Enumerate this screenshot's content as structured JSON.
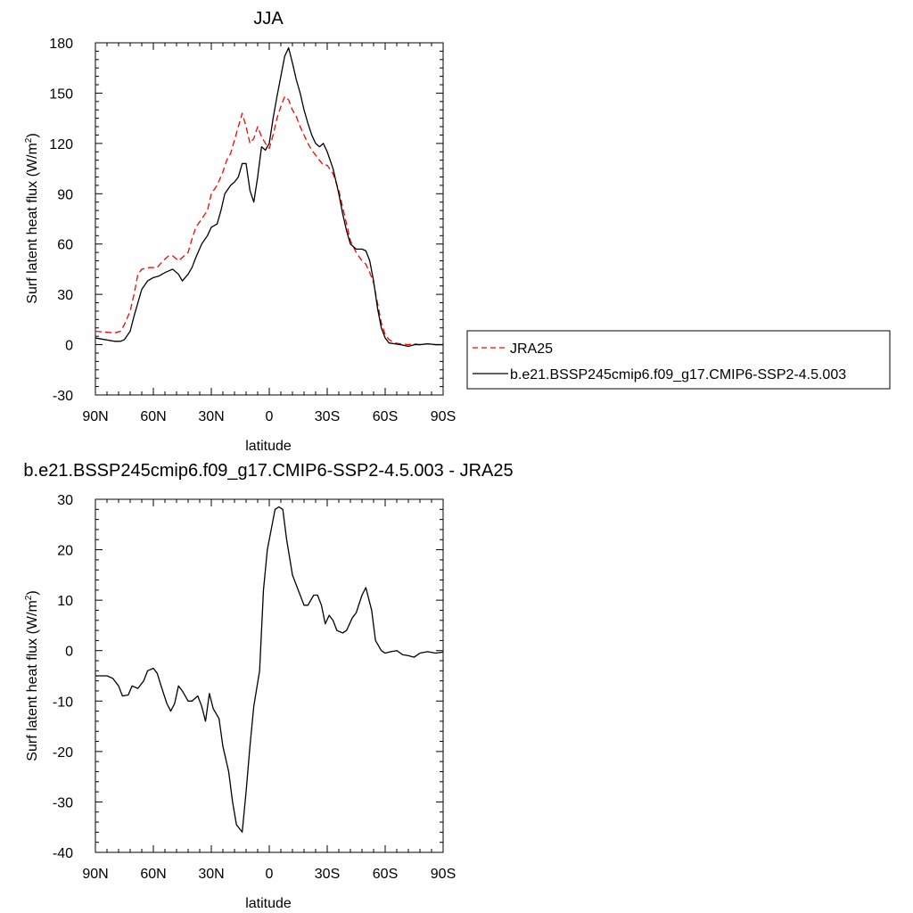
{
  "chart_data": [
    {
      "type": "line",
      "title": "JJA",
      "xlabel": "latitude",
      "ylabel": "Surf latent heat flux (W/m",
      "ylabel_sup": "2",
      "ylabel_close": ")",
      "xlim": [
        90,
        -90
      ],
      "ylim": [
        -30,
        180
      ],
      "xticks": [
        {
          "value": 90,
          "label": "90N"
        },
        {
          "value": 60,
          "label": "60N"
        },
        {
          "value": 30,
          "label": "30N"
        },
        {
          "value": 0,
          "label": "0"
        },
        {
          "value": -30,
          "label": "30S"
        },
        {
          "value": -60,
          "label": "60S"
        },
        {
          "value": -90,
          "label": "90S"
        }
      ],
      "yticks": [
        -30,
        0,
        30,
        60,
        90,
        120,
        150,
        180
      ],
      "legend_position": "right",
      "series": [
        {
          "name": "JRA25",
          "color": "#ff0000",
          "dash": true,
          "points": [
            [
              90,
              8
            ],
            [
              85,
              7.5
            ],
            [
              80,
              7
            ],
            [
              77,
              8
            ],
            [
              75,
              12
            ],
            [
              72,
              20
            ],
            [
              70,
              30
            ],
            [
              68,
              42
            ],
            [
              66,
              45
            ],
            [
              62,
              46
            ],
            [
              58,
              46
            ],
            [
              55,
              50
            ],
            [
              52,
              53
            ],
            [
              50,
              53
            ],
            [
              47,
              50
            ],
            [
              45,
              52
            ],
            [
              42,
              55
            ],
            [
              40,
              63
            ],
            [
              38,
              70
            ],
            [
              35,
              75
            ],
            [
              32,
              80
            ],
            [
              30,
              90
            ],
            [
              27,
              95
            ],
            [
              24,
              103
            ],
            [
              22,
              110
            ],
            [
              20,
              114
            ],
            [
              18,
              122
            ],
            [
              16,
              130
            ],
            [
              14,
              138
            ],
            [
              12,
              130
            ],
            [
              10,
              120
            ],
            [
              8,
              123
            ],
            [
              6,
              130
            ],
            [
              4,
              124
            ],
            [
              2,
              120
            ],
            [
              0,
              117
            ],
            [
              -2,
              125
            ],
            [
              -4,
              135
            ],
            [
              -6,
              142
            ],
            [
              -8,
              148
            ],
            [
              -10,
              146
            ],
            [
              -12,
              140
            ],
            [
              -14,
              136
            ],
            [
              -16,
              130
            ],
            [
              -18,
              125
            ],
            [
              -20,
              120
            ],
            [
              -22,
              116
            ],
            [
              -24,
              113
            ],
            [
              -26,
              110
            ],
            [
              -28,
              107
            ],
            [
              -30,
              107
            ],
            [
              -33,
              102
            ],
            [
              -36,
              92
            ],
            [
              -38,
              82
            ],
            [
              -40,
              72
            ],
            [
              -42,
              62
            ],
            [
              -45,
              55
            ],
            [
              -48,
              50
            ],
            [
              -50,
              48
            ],
            [
              -52,
              43
            ],
            [
              -54,
              37
            ],
            [
              -56,
              25
            ],
            [
              -58,
              13
            ],
            [
              -60,
              6
            ],
            [
              -62,
              3
            ],
            [
              -65,
              1
            ],
            [
              -68,
              0.5
            ],
            [
              -72,
              0
            ],
            [
              -75,
              0.5
            ],
            [
              -78,
              0
            ],
            [
              -82,
              0.5
            ],
            [
              -86,
              0
            ],
            [
              -90,
              0
            ]
          ]
        },
        {
          "name": "b.e21.BSSP245cmip6.f09_g17.CMIP6-SSP2-4.5.003",
          "color": "#000000",
          "dash": false,
          "points": [
            [
              90,
              4
            ],
            [
              85,
              3
            ],
            [
              80,
              2
            ],
            [
              77,
              2
            ],
            [
              75,
              3
            ],
            [
              72,
              8
            ],
            [
              70,
              17
            ],
            [
              68,
              25
            ],
            [
              66,
              33
            ],
            [
              63,
              38
            ],
            [
              60,
              40
            ],
            [
              57,
              41
            ],
            [
              54,
              43
            ],
            [
              50,
              45
            ],
            [
              47,
              42
            ],
            [
              45,
              38
            ],
            [
              42,
              42
            ],
            [
              40,
              46
            ],
            [
              38,
              52
            ],
            [
              35,
              60
            ],
            [
              32,
              65
            ],
            [
              30,
              70
            ],
            [
              27,
              72
            ],
            [
              25,
              80
            ],
            [
              23,
              90
            ],
            [
              20,
              95
            ],
            [
              18,
              97
            ],
            [
              16,
              100
            ],
            [
              14,
              108
            ],
            [
              12,
              108
            ],
            [
              10,
              92
            ],
            [
              8,
              85
            ],
            [
              6,
              100
            ],
            [
              4,
              118
            ],
            [
              2,
              116
            ],
            [
              0,
              120
            ],
            [
              -2,
              135
            ],
            [
              -4,
              148
            ],
            [
              -6,
              160
            ],
            [
              -8,
              172
            ],
            [
              -10,
              177
            ],
            [
              -12,
              168
            ],
            [
              -14,
              158
            ],
            [
              -16,
              150
            ],
            [
              -18,
              140
            ],
            [
              -20,
              132
            ],
            [
              -22,
              125
            ],
            [
              -24,
              120
            ],
            [
              -26,
              118
            ],
            [
              -28,
              120
            ],
            [
              -30,
              115
            ],
            [
              -33,
              105
            ],
            [
              -36,
              90
            ],
            [
              -38,
              78
            ],
            [
              -40,
              68
            ],
            [
              -42,
              60
            ],
            [
              -45,
              57
            ],
            [
              -48,
              57
            ],
            [
              -50,
              56
            ],
            [
              -52,
              50
            ],
            [
              -54,
              38
            ],
            [
              -56,
              22
            ],
            [
              -58,
              10
            ],
            [
              -60,
              4
            ],
            [
              -62,
              1
            ],
            [
              -65,
              0.5
            ],
            [
              -68,
              0
            ],
            [
              -72,
              -1
            ],
            [
              -75,
              0
            ],
            [
              -78,
              0
            ],
            [
              -82,
              0.5
            ],
            [
              -86,
              0
            ],
            [
              -90,
              0
            ]
          ]
        }
      ]
    },
    {
      "type": "line",
      "title": "b.e21.BSSP245cmip6.f09_g17.CMIP6-SSP2-4.5.003 - JRA25",
      "xlabel": "latitude",
      "ylabel": "Surf latent heat flux (W/m",
      "ylabel_sup": "2",
      "ylabel_close": ")",
      "xlim": [
        90,
        -90
      ],
      "ylim": [
        -40,
        30
      ],
      "xticks": [
        {
          "value": 90,
          "label": "90N"
        },
        {
          "value": 60,
          "label": "60N"
        },
        {
          "value": 30,
          "label": "30N"
        },
        {
          "value": 0,
          "label": "0"
        },
        {
          "value": -30,
          "label": "30S"
        },
        {
          "value": -60,
          "label": "60S"
        },
        {
          "value": -90,
          "label": "90S"
        }
      ],
      "yticks": [
        -40,
        -30,
        -20,
        -10,
        0,
        10,
        20,
        30
      ],
      "series": [
        {
          "color": "#000000",
          "dash": false,
          "points": [
            [
              90,
              -5
            ],
            [
              87,
              -5
            ],
            [
              84,
              -5
            ],
            [
              81,
              -5.5
            ],
            [
              78,
              -7
            ],
            [
              76,
              -9
            ],
            [
              73,
              -8.8
            ],
            [
              71,
              -7
            ],
            [
              68,
              -7.5
            ],
            [
              65,
              -6
            ],
            [
              63,
              -4
            ],
            [
              60,
              -3.5
            ],
            [
              58,
              -4.5
            ],
            [
              56,
              -7
            ],
            [
              53,
              -10.5
            ],
            [
              51,
              -12
            ],
            [
              49,
              -10.5
            ],
            [
              47,
              -7
            ],
            [
              45,
              -8
            ],
            [
              42,
              -10
            ],
            [
              40,
              -10
            ],
            [
              37,
              -9
            ],
            [
              35,
              -11
            ],
            [
              33,
              -14
            ],
            [
              31,
              -8.5
            ],
            [
              29,
              -11.5
            ],
            [
              26,
              -13.5
            ],
            [
              24,
              -19
            ],
            [
              21,
              -24
            ],
            [
              19,
              -30
            ],
            [
              17,
              -34.5
            ],
            [
              14,
              -36
            ],
            [
              12,
              -28
            ],
            [
              10,
              -19
            ],
            [
              8,
              -11
            ],
            [
              5,
              -4
            ],
            [
              3,
              12
            ],
            [
              1,
              20
            ],
            [
              -1,
              24
            ],
            [
              -3,
              28
            ],
            [
              -5,
              28.5
            ],
            [
              -7,
              28
            ],
            [
              -9,
              22
            ],
            [
              -12,
              15
            ],
            [
              -15,
              12
            ],
            [
              -18,
              9
            ],
            [
              -20,
              9
            ],
            [
              -23,
              11
            ],
            [
              -25,
              11
            ],
            [
              -27,
              9
            ],
            [
              -29,
              5.3
            ],
            [
              -31,
              7
            ],
            [
              -33,
              6
            ],
            [
              -35,
              4
            ],
            [
              -38,
              3.5
            ],
            [
              -40,
              4
            ],
            [
              -43,
              6.5
            ],
            [
              -45,
              7.5
            ],
            [
              -48,
              11
            ],
            [
              -50,
              12.5
            ],
            [
              -53,
              8
            ],
            [
              -55,
              2
            ],
            [
              -58,
              0
            ],
            [
              -60,
              -0.5
            ],
            [
              -63,
              -0.2
            ],
            [
              -66,
              0
            ],
            [
              -69,
              -0.8
            ],
            [
              -72,
              -1
            ],
            [
              -75,
              -1.3
            ],
            [
              -78,
              -0.5
            ],
            [
              -82,
              -0.2
            ],
            [
              -86,
              -0.5
            ],
            [
              -90,
              -0.3
            ]
          ]
        }
      ]
    }
  ]
}
